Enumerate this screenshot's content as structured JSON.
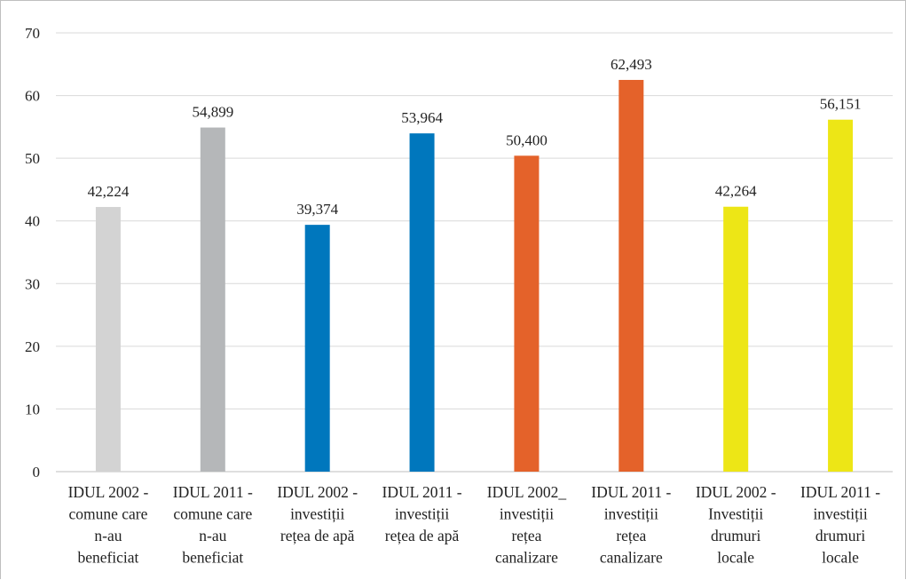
{
  "chart_data": {
    "type": "bar",
    "title": "",
    "xlabel": "",
    "ylabel": "",
    "ylim": [
      0,
      70
    ],
    "yticks": [
      0,
      10,
      20,
      30,
      40,
      50,
      60,
      70
    ],
    "grid": true,
    "legend": "none",
    "categories": [
      [
        "IDUL 2002 -",
        "comune care",
        "n-au",
        "beneficiat"
      ],
      [
        "IDUL 2011 -",
        "comune care",
        "n-au",
        "beneficiat"
      ],
      [
        "IDUL 2002 -",
        "investiții",
        "rețea de apă"
      ],
      [
        "IDUL 2011 -",
        "investiții",
        "rețea de apă"
      ],
      [
        "IDUL 2002_",
        "investiții",
        "rețea",
        "canalizare"
      ],
      [
        "IDUL 2011 -",
        "investiții",
        "rețea",
        "canalizare"
      ],
      [
        "IDUL 2002 -",
        "Investiții",
        "drumuri",
        "locale"
      ],
      [
        "IDUL 2011 -",
        "investiții",
        "drumuri",
        "locale"
      ]
    ],
    "values": [
      42.224,
      54.899,
      39.374,
      53.964,
      50.4,
      62.493,
      42.264,
      56.151
    ],
    "data_labels": [
      "42,224",
      "54,899",
      "39,374",
      "53,964",
      "50,400",
      "62,493",
      "42,264",
      "56,151"
    ],
    "colors": [
      "#d3d3d3",
      "#b5b7b9",
      "#0077bd",
      "#0077bd",
      "#e4622a",
      "#e4622a",
      "#ede616",
      "#ede616"
    ],
    "grid_color": "#d9d9d9",
    "axis_color": "#bfbfbf"
  }
}
